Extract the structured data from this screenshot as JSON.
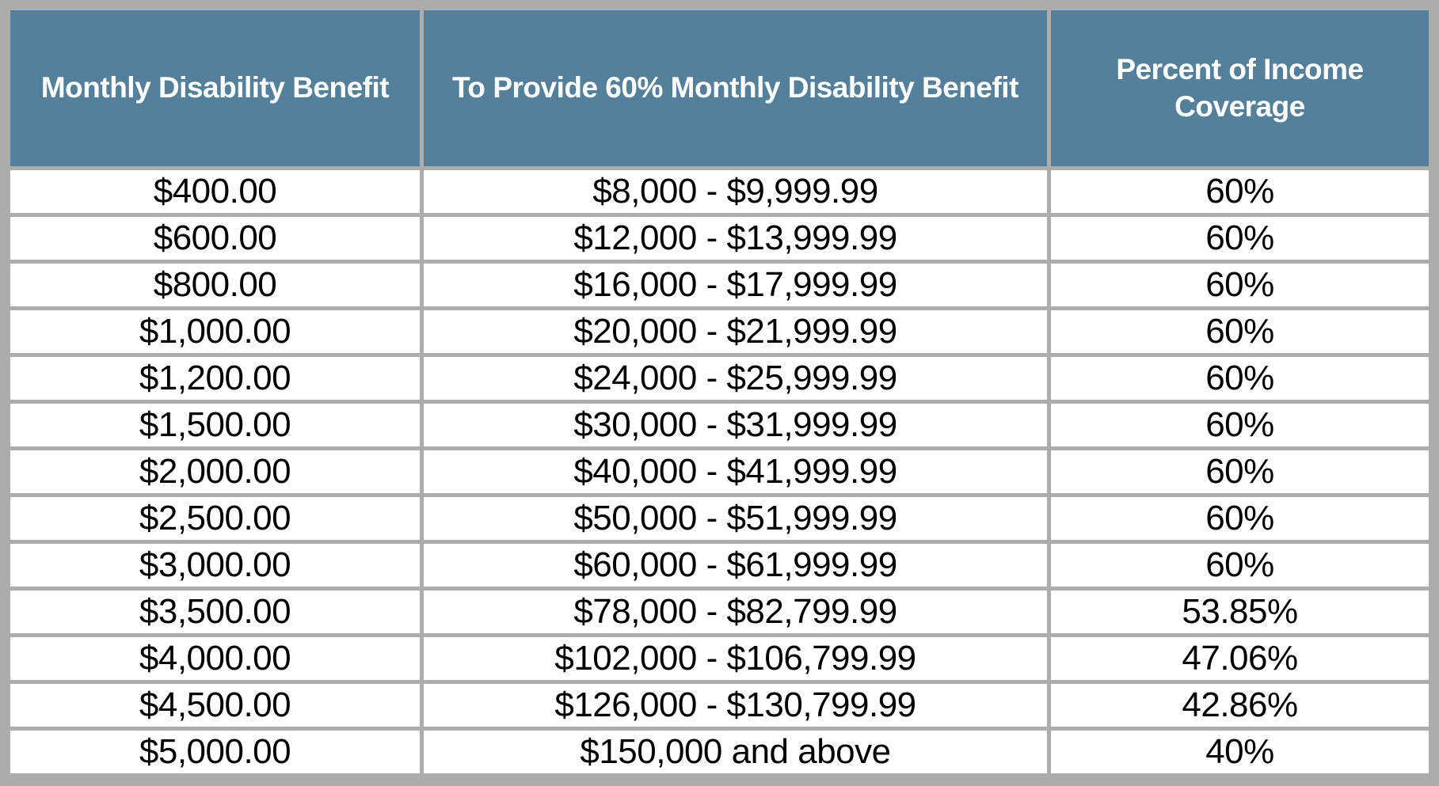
{
  "chart_data": {
    "type": "table",
    "title": "",
    "columns": [
      "Monthly Disability Benefit",
      "To Provide 60% Monthly Disability Benefit",
      "Percent of Income Coverage"
    ],
    "rows": [
      [
        "$400.00",
        "$8,000 - $9,999.99",
        "60%"
      ],
      [
        "$600.00",
        "$12,000 - $13,999.99",
        "60%"
      ],
      [
        "$800.00",
        "$16,000 - $17,999.99",
        "60%"
      ],
      [
        "$1,000.00",
        "$20,000 - $21,999.99",
        "60%"
      ],
      [
        "$1,200.00",
        "$24,000 - $25,999.99",
        "60%"
      ],
      [
        "$1,500.00",
        "$30,000 - $31,999.99",
        "60%"
      ],
      [
        "$2,000.00",
        "$40,000 - $41,999.99",
        "60%"
      ],
      [
        "$2,500.00",
        "$50,000 - $51,999.99",
        "60%"
      ],
      [
        "$3,000.00",
        "$60,000 - $61,999.99",
        "60%"
      ],
      [
        "$3,500.00",
        "$78,000 - $82,799.99",
        "53.85%"
      ],
      [
        "$4,000.00",
        "$102,000 - $106,799.99",
        "47.06%"
      ],
      [
        "$4,500.00",
        "$126,000 - $130,799.99",
        "42.86%"
      ],
      [
        "$5,000.00",
        "$150,000 and above",
        "40%"
      ]
    ]
  },
  "colors": {
    "header_bg": "#54809B",
    "header_text": "#FFFFFF",
    "grid": "#ACACAC",
    "cell_bg": "#FFFFFF",
    "cell_text": "#000000"
  }
}
